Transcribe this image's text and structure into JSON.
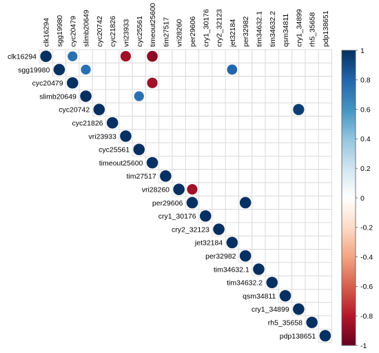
{
  "chart_data": {
    "type": "heatmap",
    "subtype": "correlation-upper-triangle-circles",
    "title": "",
    "xlabel": "",
    "ylabel": "",
    "labels": [
      "clk16294",
      "sgg19980",
      "cyc20479",
      "slimb20649",
      "cyc20742",
      "cyc21826",
      "vri23933",
      "cyc25561",
      "timeout25600",
      "tim27517",
      "vri28260",
      "per29606",
      "cry1_30176",
      "cry2_32123",
      "jet32184",
      "per32982",
      "tim34632.1",
      "tim34632.2",
      "qsm34811",
      "cry1_34899",
      "rh5_35658",
      "pdp138651"
    ],
    "cells": [
      {
        "row": "clk16294",
        "col": "clk16294",
        "value": 1
      },
      {
        "row": "clk16294",
        "col": "cyc20479",
        "value": 0.75
      },
      {
        "row": "clk16294",
        "col": "vri23933",
        "value": -0.85
      },
      {
        "row": "clk16294",
        "col": "timeout25600",
        "value": -0.9
      },
      {
        "row": "sgg19980",
        "col": "sgg19980",
        "value": 1
      },
      {
        "row": "sgg19980",
        "col": "slimb20649",
        "value": 0.75
      },
      {
        "row": "sgg19980",
        "col": "jet32184",
        "value": 0.8
      },
      {
        "row": "cyc20479",
        "col": "cyc20479",
        "value": 1
      },
      {
        "row": "cyc20479",
        "col": "timeout25600",
        "value": -0.85
      },
      {
        "row": "slimb20649",
        "col": "slimb20649",
        "value": 1
      },
      {
        "row": "slimb20649",
        "col": "cyc25561",
        "value": 0.75
      },
      {
        "row": "cyc20742",
        "col": "cyc20742",
        "value": 1
      },
      {
        "row": "cyc20742",
        "col": "cry1_34899",
        "value": 0.95
      },
      {
        "row": "cyc21826",
        "col": "cyc21826",
        "value": 1
      },
      {
        "row": "vri23933",
        "col": "vri23933",
        "value": 1
      },
      {
        "row": "cyc25561",
        "col": "cyc25561",
        "value": 1
      },
      {
        "row": "timeout25600",
        "col": "timeout25600",
        "value": 1
      },
      {
        "row": "tim27517",
        "col": "tim27517",
        "value": 1
      },
      {
        "row": "vri28260",
        "col": "vri28260",
        "value": 1
      },
      {
        "row": "vri28260",
        "col": "per29606",
        "value": -0.85
      },
      {
        "row": "per29606",
        "col": "per29606",
        "value": 1
      },
      {
        "row": "per29606",
        "col": "per32982",
        "value": 1
      },
      {
        "row": "cry1_30176",
        "col": "cry1_30176",
        "value": 1
      },
      {
        "row": "cry2_32123",
        "col": "cry2_32123",
        "value": 1
      },
      {
        "row": "jet32184",
        "col": "jet32184",
        "value": 1
      },
      {
        "row": "per32982",
        "col": "per32982",
        "value": 1
      },
      {
        "row": "tim34632.1",
        "col": "tim34632.1",
        "value": 1
      },
      {
        "row": "tim34632.2",
        "col": "tim34632.2",
        "value": 1
      },
      {
        "row": "qsm34811",
        "col": "qsm34811",
        "value": 1
      },
      {
        "row": "cry1_34899",
        "col": "cry1_34899",
        "value": 1
      },
      {
        "row": "rh5_35658",
        "col": "rh5_35658",
        "value": 1
      },
      {
        "row": "pdp138651",
        "col": "pdp138651",
        "value": 1
      }
    ],
    "color_scale": {
      "range": [
        -1,
        1
      ],
      "ticks": [
        "1",
        "0.8",
        "0.6",
        "0.4",
        "0.2",
        "0",
        "-0.2",
        "-0.4",
        "-0.6",
        "-0.8",
        "-1"
      ],
      "stops": [
        "#67001F",
        "#B2182B",
        "#D6604D",
        "#F4A582",
        "#FDDBC7",
        "#FFFFFF",
        "#D1E5F0",
        "#92C5DE",
        "#4393C3",
        "#2166AC",
        "#053061"
      ]
    },
    "legend_placement": "right",
    "grid": true
  }
}
